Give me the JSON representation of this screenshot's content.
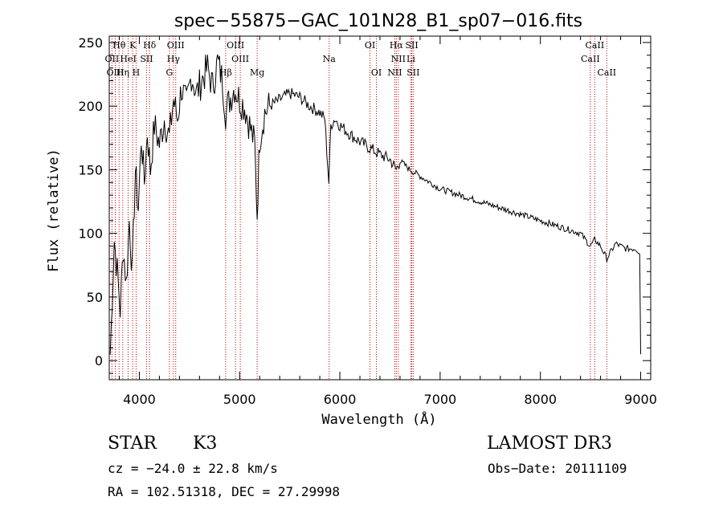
{
  "chart_data": {
    "type": "line",
    "title": "spec−55875−GAC_101N28_B1_sp07−016.fits",
    "xlabel": "Wavelength (Å)",
    "ylabel": "Flux (relative)",
    "xlim": [
      3700,
      9100
    ],
    "ylim": [
      -15,
      255
    ],
    "xticks": [
      "4000",
      "5000",
      "6000",
      "7000",
      "8000",
      "9000"
    ],
    "xtick_values": [
      4000,
      5000,
      6000,
      7000,
      8000,
      9000
    ],
    "yticks": [
      "0",
      "50",
      "100",
      "150",
      "200",
      "250"
    ],
    "ytick_values": [
      0,
      50,
      100,
      150,
      200,
      250
    ],
    "series": [
      {
        "name": "spectrum",
        "x": [
          3710,
          3750,
          3780,
          3810,
          3840,
          3870,
          3900,
          3930,
          3960,
          3990,
          4020,
          4050,
          4080,
          4110,
          4150,
          4200,
          4250,
          4300,
          4340,
          4380,
          4420,
          4470,
          4520,
          4570,
          4620,
          4680,
          4730,
          4780,
          4830,
          4861,
          4900,
          4950,
          5000,
          5050,
          5100,
          5150,
          5175,
          5200,
          5250,
          5300,
          5400,
          5500,
          5600,
          5700,
          5800,
          5850,
          5890,
          5910,
          5950,
          6000,
          6100,
          6200,
          6300,
          6400,
          6500,
          6563,
          6600,
          6700,
          6800,
          6900,
          7000,
          7200,
          7400,
          7600,
          7800,
          8000,
          8200,
          8400,
          8498,
          8542,
          8600,
          8662,
          8750,
          8850,
          8950,
          8990,
          9000
        ],
        "y": [
          5,
          95,
          70,
          40,
          90,
          60,
          110,
          70,
          150,
          120,
          175,
          140,
          180,
          150,
          185,
          170,
          190,
          175,
          205,
          190,
          215,
          200,
          225,
          210,
          220,
          230,
          215,
          235,
          220,
          195,
          205,
          215,
          205,
          200,
          185,
          170,
          115,
          175,
          195,
          200,
          205,
          210,
          207,
          200,
          195,
          190,
          140,
          185,
          190,
          185,
          178,
          172,
          167,
          162,
          158,
          150,
          157,
          150,
          145,
          140,
          135,
          130,
          125,
          120,
          115,
          110,
          105,
          100,
          90,
          95,
          90,
          80,
          92,
          88,
          88,
          85,
          5
        ]
      }
    ],
    "lines": [
      {
        "name": "Hθ",
        "x": 3798,
        "row": 0
      },
      {
        "name": "K",
        "x": 3934,
        "row": 0
      },
      {
        "name": "Hδ",
        "x": 4102,
        "row": 0
      },
      {
        "name": "OIII",
        "x": 4363,
        "row": 0
      },
      {
        "name": "OIII",
        "x": 4959,
        "row": 0
      },
      {
        "name": "OI",
        "x": 6300,
        "row": 0
      },
      {
        "name": "Hα",
        "x": 6563,
        "row": 0
      },
      {
        "name": "SII",
        "x": 6717,
        "row": 0
      },
      {
        "name": "CaII",
        "x": 8542,
        "row": 0
      },
      {
        "name": "OII",
        "x": 3727,
        "row": 1
      },
      {
        "name": "HeI",
        "x": 3889,
        "row": 1
      },
      {
        "name": "SII",
        "x": 4072,
        "row": 1
      },
      {
        "name": "Hγ",
        "x": 4340,
        "row": 1
      },
      {
        "name": "OIII",
        "x": 5007,
        "row": 1
      },
      {
        "name": "Na",
        "x": 5893,
        "row": 1
      },
      {
        "name": "NII",
        "x": 6583,
        "row": 1
      },
      {
        "name": "Li",
        "x": 6708,
        "row": 1
      },
      {
        "name": "CaII",
        "x": 8498,
        "row": 1
      },
      {
        "name": "OIII",
        "x": 3760,
        "row": 2
      },
      {
        "name": "Hη",
        "x": 3835,
        "row": 2
      },
      {
        "name": "H",
        "x": 3968,
        "row": 2
      },
      {
        "name": "G",
        "x": 4300,
        "row": 2
      },
      {
        "name": "Hβ",
        "x": 4861,
        "row": 2
      },
      {
        "name": "Mg",
        "x": 5175,
        "row": 2
      },
      {
        "name": "OI",
        "x": 6364,
        "row": 2
      },
      {
        "name": "NII",
        "x": 6548,
        "row": 2
      },
      {
        "name": "SII",
        "x": 6731,
        "row": 2
      },
      {
        "name": "CaII",
        "x": 8662,
        "row": 2
      }
    ]
  },
  "info": {
    "object_type": "STAR",
    "subclass": "K3",
    "survey": "LAMOST DR3",
    "redshift": "cz = −24.0 ± 22.8 km/s",
    "obs_date": "Obs−Date: 20111109",
    "coords": "RA = 102.51318, DEC =  27.29998"
  }
}
